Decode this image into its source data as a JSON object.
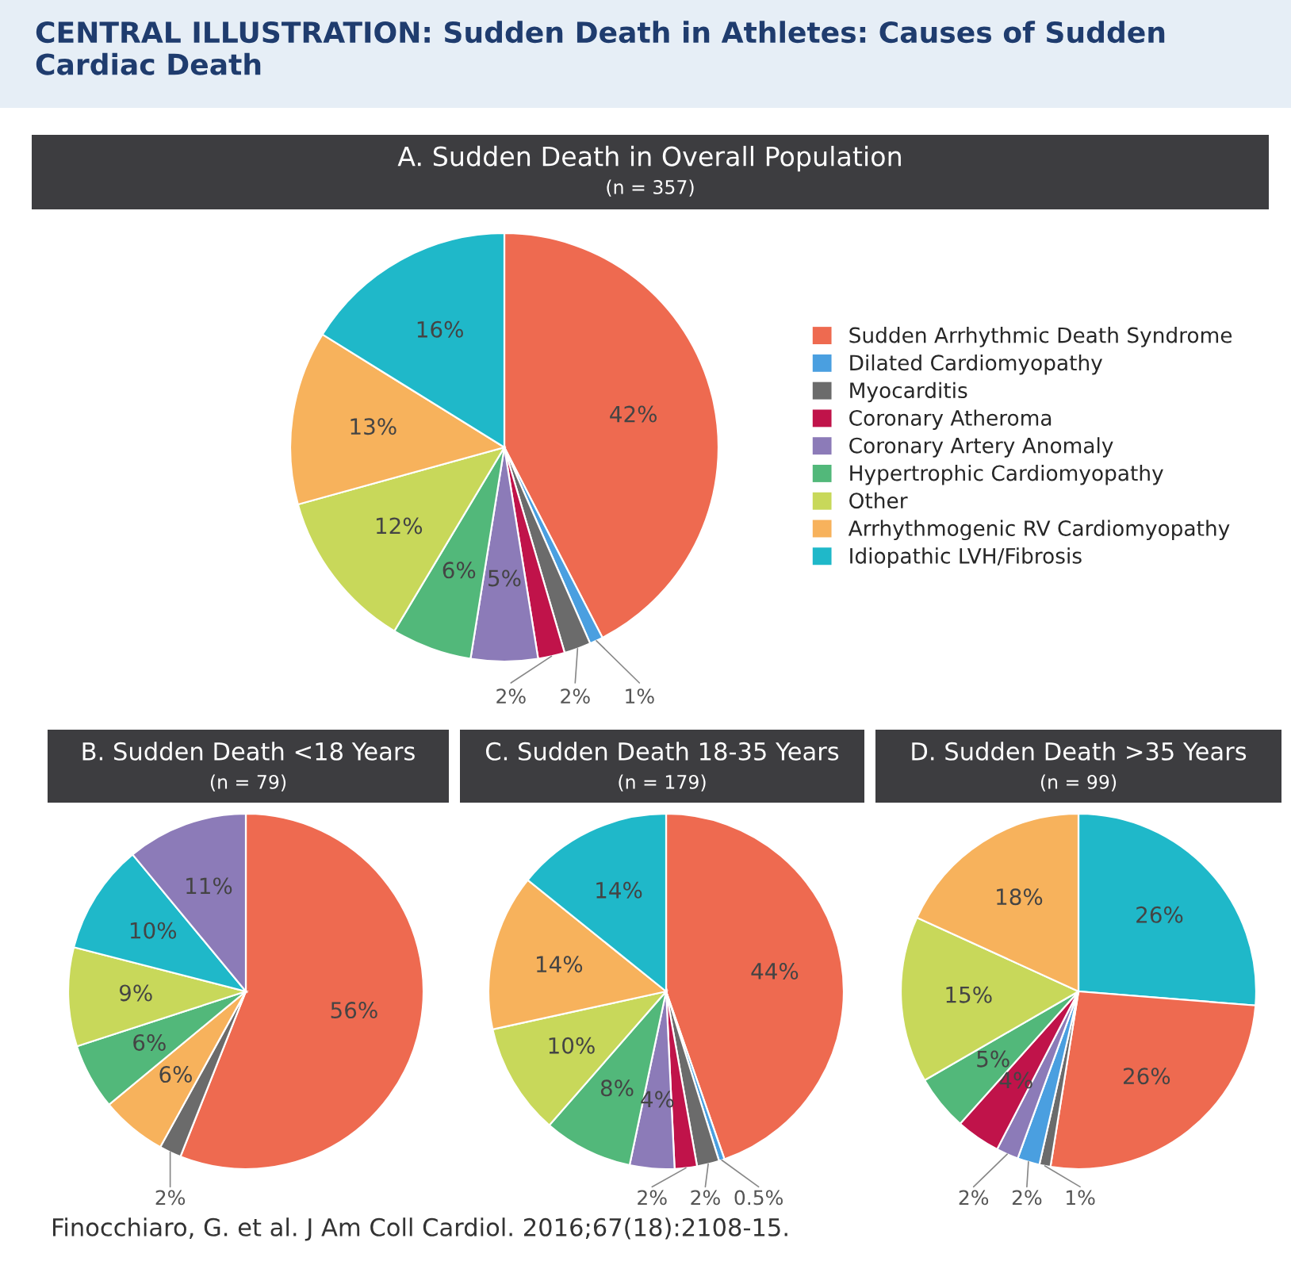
{
  "chart_data": [
    {
      "type": "pie",
      "title": "A. Sudden Death in Overall Population",
      "subtitle": "(n = 357)",
      "legend": "right",
      "annotations": [
        "CENTRAL ILLUSTRATION: Sudden Death in Athletes: Causes of Sudden Cardiac Death",
        "Finocchiaro, G. et al. J Am Coll Cardiol. 2016;67(18):2108-15."
      ],
      "categories": [
        "Sudden Arrhythmic Death Syndrome",
        "Dilated Cardiomyopathy",
        "Myocarditis",
        "Coronary Atheroma",
        "Coronary Artery Anomaly",
        "Hypertrophic Cardiomyopathy",
        "Other",
        "Arrhythmogenic RV Cardiomyopathy",
        "Idiopathic LVH/Fibrosis"
      ],
      "values": [
        42,
        1,
        2,
        2,
        5,
        6,
        12,
        13,
        16
      ],
      "value_labels": [
        "42%",
        "1%",
        "2%",
        "2%",
        "5%",
        "6%",
        "12%",
        "13%",
        "16%"
      ],
      "colors": [
        "#ee6a50",
        "#4a9fe0",
        "#6b6b6b",
        "#c0134a",
        "#8c7bb8",
        "#52b87a",
        "#c8d85a",
        "#f7b25c",
        "#1fb8c9"
      ]
    },
    {
      "type": "pie",
      "title": "B. Sudden Death <18 Years",
      "subtitle": "(n = 79)",
      "categories": [
        null,
        null,
        null,
        null,
        null,
        null,
        null
      ],
      "values": [
        56,
        2,
        6,
        6,
        9,
        10,
        11
      ],
      "value_labels": [
        "56%",
        "2%",
        "6%",
        "6%",
        "9%",
        "10%",
        "11%"
      ],
      "colors": [
        "#ee6a50",
        "#6b6b6b",
        "#f7b25c",
        "#52b87a",
        "#c8d85a",
        "#1fb8c9",
        "#8c7bb8"
      ]
    },
    {
      "type": "pie",
      "title": "C. Sudden Death 18-35 Years",
      "subtitle": "(n = 179)",
      "categories": [
        null,
        null,
        null,
        null,
        null,
        null,
        null,
        null,
        null
      ],
      "values": [
        44,
        0.5,
        2,
        2,
        4,
        8,
        10,
        14,
        14
      ],
      "value_labels": [
        "44%",
        "0.5%",
        "2%",
        "2%",
        "4%",
        "8%",
        "10%",
        "14%",
        "14%"
      ],
      "colors": [
        "#ee6a50",
        "#4a9fe0",
        "#6b6b6b",
        "#c0134a",
        "#8c7bb8",
        "#52b87a",
        "#c8d85a",
        "#f7b25c",
        "#1fb8c9"
      ]
    },
    {
      "type": "pie",
      "title": "D. Sudden Death >35 Years",
      "subtitle": "(n = 99)",
      "categories": [
        null,
        null,
        null,
        null,
        null,
        null,
        null,
        null,
        null
      ],
      "values": [
        26,
        26,
        1,
        2,
        2,
        4,
        5,
        15,
        18
      ],
      "value_labels": [
        "26%",
        "26%",
        "1%",
        "2%",
        "2%",
        "4%",
        "5%",
        "15%",
        "18%"
      ],
      "colors": [
        "#1fb8c9",
        "#ee6a50",
        "#6b6b6b",
        "#4a9fe0",
        "#8c7bb8",
        "#c0134a",
        "#52b87a",
        "#c8d85a",
        "#f7b25c"
      ]
    }
  ]
}
